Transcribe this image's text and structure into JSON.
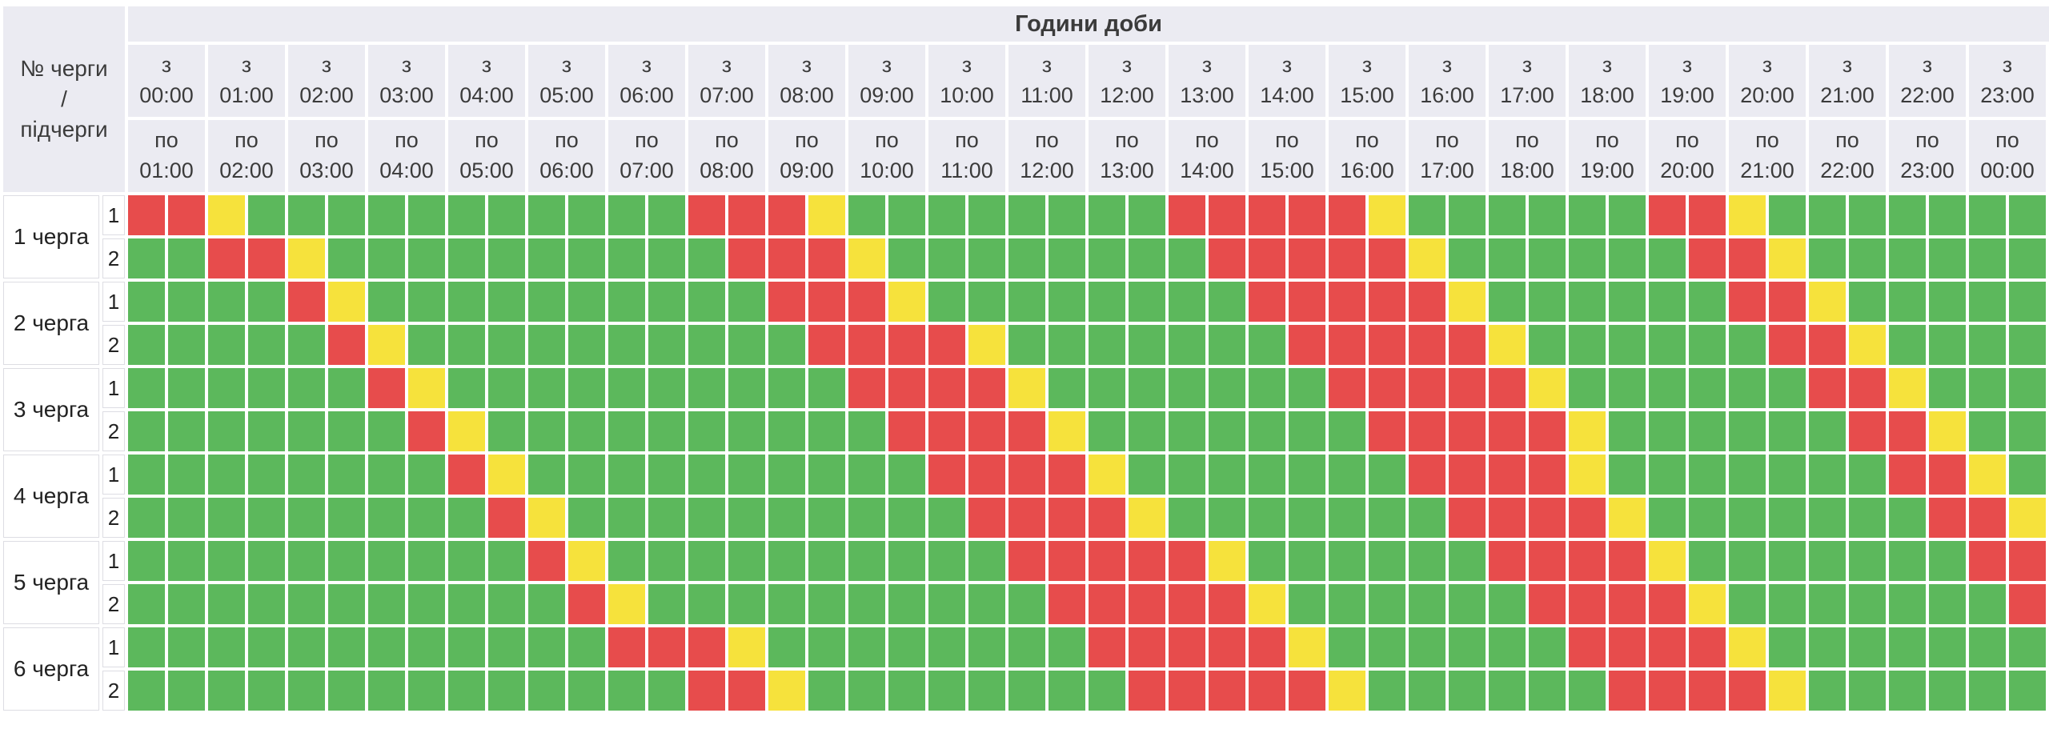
{
  "chart_data": {
    "type": "heatmap",
    "title": "Години доби",
    "corner_label_lines": [
      "№ черги",
      "/",
      "підчерги"
    ],
    "col_from_prefix": "з",
    "col_to_prefix": "по",
    "columns_per_hour": 2,
    "cell_duration_minutes": 30,
    "columns": [
      {
        "from": "00:00",
        "to": "01:00"
      },
      {
        "from": "01:00",
        "to": "02:00"
      },
      {
        "from": "02:00",
        "to": "03:00"
      },
      {
        "from": "03:00",
        "to": "04:00"
      },
      {
        "from": "04:00",
        "to": "05:00"
      },
      {
        "from": "05:00",
        "to": "06:00"
      },
      {
        "from": "06:00",
        "to": "07:00"
      },
      {
        "from": "07:00",
        "to": "08:00"
      },
      {
        "from": "08:00",
        "to": "09:00"
      },
      {
        "from": "09:00",
        "to": "10:00"
      },
      {
        "from": "10:00",
        "to": "11:00"
      },
      {
        "from": "11:00",
        "to": "12:00"
      },
      {
        "from": "12:00",
        "to": "13:00"
      },
      {
        "from": "13:00",
        "to": "14:00"
      },
      {
        "from": "14:00",
        "to": "15:00"
      },
      {
        "from": "15:00",
        "to": "16:00"
      },
      {
        "from": "16:00",
        "to": "17:00"
      },
      {
        "from": "17:00",
        "to": "18:00"
      },
      {
        "from": "18:00",
        "to": "19:00"
      },
      {
        "from": "19:00",
        "to": "20:00"
      },
      {
        "from": "20:00",
        "to": "21:00"
      },
      {
        "from": "21:00",
        "to": "22:00"
      },
      {
        "from": "22:00",
        "to": "23:00"
      },
      {
        "from": "23:00",
        "to": "00:00"
      }
    ],
    "cell_states": {
      "G": "green (power on)",
      "R": "red (outage)",
      "Y": "yellow (possible outage)"
    },
    "colors": {
      "G": "#5cb85c",
      "R": "#e74c4c",
      "Y": "#f6e23c",
      "header_bg": "#ebebf2"
    },
    "queues": [
      {
        "label": "1 черга",
        "subqueues": [
          {
            "label": "1",
            "cells": "RRYGGGGGGGGGGGRRRYGGGGGGGGRRRRRYGGGGGGRRYGGGGGGG"
          },
          {
            "label": "2",
            "cells": "GGRRYGGGGGGGGGGRRRYGGGGGGGGRRRRRYGGGGGGRRYGGGGGG"
          }
        ]
      },
      {
        "label": "2 черга",
        "subqueues": [
          {
            "label": "1",
            "cells": "GGGGRYGGGGGGGGGGRRRYGGGGGGGGRRRRRYGGGGGGRRYGGGGG"
          },
          {
            "label": "2",
            "cells": "GGGGGRYGGGGGGGGGGRRRRYGGGGGGGRRRRRYGGGGGGRRYGGGG"
          }
        ]
      },
      {
        "label": "3 черга",
        "subqueues": [
          {
            "label": "1",
            "cells": "GGGGGGRYGGGGGGGGGGRRRRYGGGGGGGRRRRRYGGGGGGRRYGGG"
          },
          {
            "label": "2",
            "cells": "GGGGGGGRYGGGGGGGGGGRRRRYGGGGGGGRRRRRYGGGGGGRRYGG"
          }
        ]
      },
      {
        "label": "4 черга",
        "subqueues": [
          {
            "label": "1",
            "cells": "GGGGGGGGRYGGGGGGGGGGRRRRYGGGGGGGRRRRYGGGGGGGRRYG"
          },
          {
            "label": "2",
            "cells": "GGGGGGGGGRYGGGGGGGGGGRRRRYGGGGGGGRRRRYGGGGGGGRRY"
          }
        ]
      },
      {
        "label": "5 черга",
        "subqueues": [
          {
            "label": "1",
            "cells": "GGGGGGGGGGRYGGGGGGGGGGRRRRRYGGGGGGRRRRYGGGGGGGRR"
          },
          {
            "label": "2",
            "cells": "GGGGGGGGGGGRYGGGGGGGGGGRRRRRYGGGGGGRRRRYGGGGGGGR"
          }
        ]
      },
      {
        "label": "6 черга",
        "subqueues": [
          {
            "label": "1",
            "cells": "GGGGGGGGGGGGRRRYGGGGGGGGRRRRRYGGGGGGRRRRYGGGGGGG"
          },
          {
            "label": "2",
            "cells": "GGGGGGGGGGGGGGRRYGGGGGGGGRRRRRYGGGGGGRRRRYGGGGGG"
          }
        ]
      }
    ]
  }
}
